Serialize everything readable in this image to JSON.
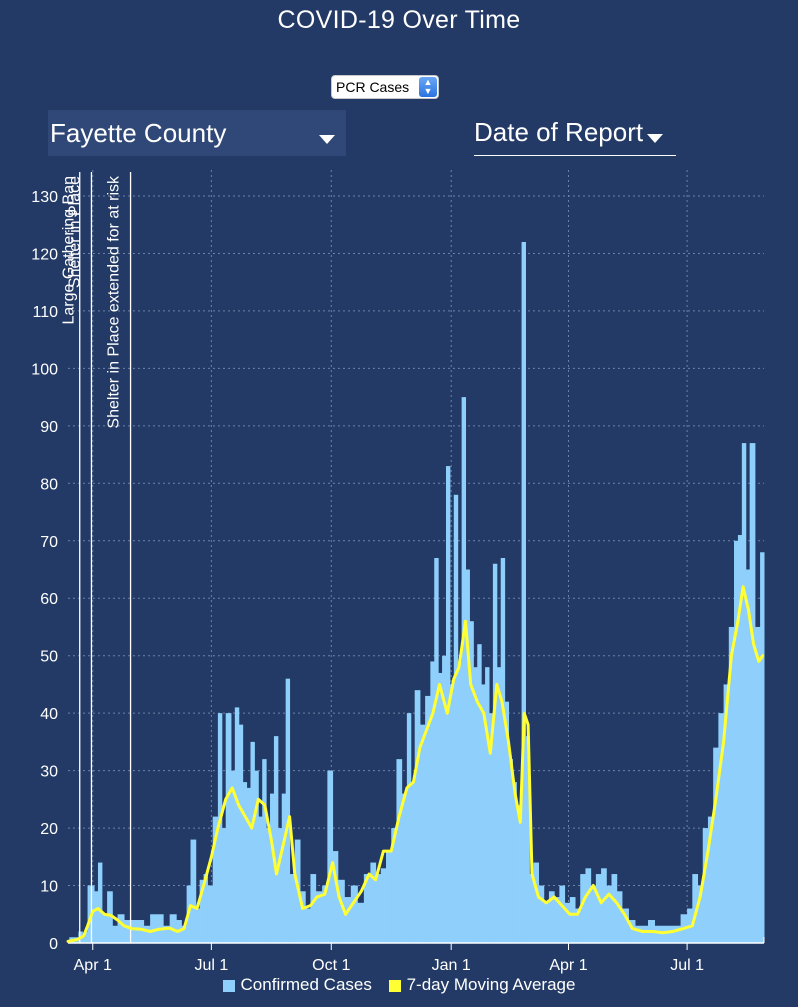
{
  "page": {
    "title": "COVID-19 Over Time"
  },
  "controls": {
    "metric_value": "PCR Cases",
    "county_value": "Fayette County",
    "date_mode_value": "Date of Report"
  },
  "colors": {
    "bars": "#8fcffb",
    "average_line": "#ffff33",
    "background": "#233a66"
  },
  "chart_data": {
    "type": "bar",
    "x_domain": [
      "2020-03-13",
      "2021-08-29"
    ],
    "ylim": [
      0,
      130
    ],
    "yticks": [
      0,
      10,
      20,
      30,
      40,
      50,
      60,
      70,
      80,
      90,
      100,
      110,
      120,
      130
    ],
    "xticks": [
      {
        "date": "2020-04-01",
        "label": "Apr 1"
      },
      {
        "date": "2020-07-01",
        "label": "Jul 1"
      },
      {
        "date": "2020-10-01",
        "label": "Oct 1"
      },
      {
        "date": "2021-01-01",
        "label": "Jan 1"
      },
      {
        "date": "2021-04-01",
        "label": "Apr 1"
      },
      {
        "date": "2021-07-01",
        "label": "Jul 1"
      }
    ],
    "grid": true,
    "legend_position": "bottom",
    "annotations": [
      {
        "date": "2020-03-22",
        "label": "Large Gathering Ban"
      },
      {
        "date": "2020-03-31",
        "label": "Shelter in Place"
      },
      {
        "date": "2020-04-30",
        "label": "Shelter in Place extended for at risk"
      }
    ],
    "series": [
      {
        "name": "Confirmed Cases",
        "type": "bar",
        "points": [
          [
            "2020-03-14",
            1
          ],
          [
            "2020-03-18",
            1
          ],
          [
            "2020-03-21",
            2
          ],
          [
            "2020-03-24",
            1
          ],
          [
            "2020-03-26",
            2
          ],
          [
            "2020-03-28",
            10
          ],
          [
            "2020-03-30",
            10
          ],
          [
            "2020-04-02",
            9
          ],
          [
            "2020-04-05",
            14
          ],
          [
            "2020-04-08",
            5
          ],
          [
            "2020-04-12",
            9
          ],
          [
            "2020-04-16",
            3
          ],
          [
            "2020-04-20",
            5
          ],
          [
            "2020-04-25",
            4
          ],
          [
            "2020-04-30",
            4
          ],
          [
            "2020-05-05",
            4
          ],
          [
            "2020-05-10",
            3
          ],
          [
            "2020-05-15",
            5
          ],
          [
            "2020-05-20",
            5
          ],
          [
            "2020-05-25",
            3
          ],
          [
            "2020-05-30",
            5
          ],
          [
            "2020-06-04",
            4
          ],
          [
            "2020-06-08",
            3
          ],
          [
            "2020-06-12",
            10
          ],
          [
            "2020-06-15",
            18
          ],
          [
            "2020-06-19",
            6
          ],
          [
            "2020-06-22",
            11
          ],
          [
            "2020-06-25",
            12
          ],
          [
            "2020-06-28",
            10
          ],
          [
            "2020-07-02",
            22
          ],
          [
            "2020-07-06",
            40
          ],
          [
            "2020-07-09",
            20
          ],
          [
            "2020-07-12",
            40
          ],
          [
            "2020-07-16",
            30
          ],
          [
            "2020-07-19",
            41
          ],
          [
            "2020-07-22",
            38
          ],
          [
            "2020-07-25",
            28
          ],
          [
            "2020-07-28",
            27
          ],
          [
            "2020-07-31",
            35
          ],
          [
            "2020-08-03",
            30
          ],
          [
            "2020-08-06",
            22
          ],
          [
            "2020-08-09",
            32
          ],
          [
            "2020-08-12",
            20
          ],
          [
            "2020-08-15",
            26
          ],
          [
            "2020-08-18",
            36
          ],
          [
            "2020-08-21",
            20
          ],
          [
            "2020-08-24",
            26
          ],
          [
            "2020-08-27",
            46
          ],
          [
            "2020-08-30",
            12
          ],
          [
            "2020-09-03",
            18
          ],
          [
            "2020-09-07",
            9
          ],
          [
            "2020-09-11",
            6
          ],
          [
            "2020-09-15",
            12
          ],
          [
            "2020-09-19",
            9
          ],
          [
            "2020-09-24",
            10
          ],
          [
            "2020-09-28",
            30
          ],
          [
            "2020-10-02",
            16
          ],
          [
            "2020-10-06",
            11
          ],
          [
            "2020-10-11",
            8
          ],
          [
            "2020-10-16",
            10
          ],
          [
            "2020-10-21",
            7
          ],
          [
            "2020-10-26",
            12
          ],
          [
            "2020-10-31",
            14
          ],
          [
            "2020-11-04",
            12
          ],
          [
            "2020-11-08",
            13
          ],
          [
            "2020-11-12",
            16
          ],
          [
            "2020-11-16",
            20
          ],
          [
            "2020-11-20",
            32
          ],
          [
            "2020-11-24",
            26
          ],
          [
            "2020-11-28",
            40
          ],
          [
            "2020-12-01",
            28
          ],
          [
            "2020-12-04",
            44
          ],
          [
            "2020-12-08",
            38
          ],
          [
            "2020-12-12",
            43
          ],
          [
            "2020-12-16",
            49
          ],
          [
            "2020-12-19",
            67
          ],
          [
            "2020-12-22",
            47
          ],
          [
            "2020-12-25",
            50
          ],
          [
            "2020-12-28",
            83
          ],
          [
            "2020-12-31",
            45
          ],
          [
            "2021-01-03",
            78
          ],
          [
            "2021-01-06",
            49
          ],
          [
            "2021-01-09",
            95
          ],
          [
            "2021-01-12",
            65
          ],
          [
            "2021-01-15",
            56
          ],
          [
            "2021-01-18",
            48
          ],
          [
            "2021-01-21",
            52
          ],
          [
            "2021-01-24",
            45
          ],
          [
            "2021-01-27",
            48
          ],
          [
            "2021-01-30",
            40
          ],
          [
            "2021-02-02",
            66
          ],
          [
            "2021-02-05",
            48
          ],
          [
            "2021-02-08",
            67
          ],
          [
            "2021-02-11",
            42
          ],
          [
            "2021-02-14",
            32
          ],
          [
            "2021-02-17",
            28
          ],
          [
            "2021-02-20",
            24
          ],
          [
            "2021-02-24",
            122
          ],
          [
            "2021-02-27",
            36
          ],
          [
            "2021-03-02",
            12
          ],
          [
            "2021-03-05",
            14
          ],
          [
            "2021-03-09",
            10
          ],
          [
            "2021-03-13",
            7
          ],
          [
            "2021-03-17",
            9
          ],
          [
            "2021-03-21",
            8
          ],
          [
            "2021-03-25",
            10
          ],
          [
            "2021-03-29",
            7
          ],
          [
            "2021-04-02",
            8
          ],
          [
            "2021-04-06",
            6
          ],
          [
            "2021-04-10",
            12
          ],
          [
            "2021-04-14",
            13
          ],
          [
            "2021-04-18",
            10
          ],
          [
            "2021-04-22",
            12
          ],
          [
            "2021-04-26",
            13
          ],
          [
            "2021-04-30",
            10
          ],
          [
            "2021-05-04",
            12
          ],
          [
            "2021-05-08",
            9
          ],
          [
            "2021-05-12",
            6
          ],
          [
            "2021-05-17",
            4
          ],
          [
            "2021-05-22",
            3
          ],
          [
            "2021-05-27",
            3
          ],
          [
            "2021-06-01",
            4
          ],
          [
            "2021-06-06",
            3
          ],
          [
            "2021-06-11",
            3
          ],
          [
            "2021-06-16",
            3
          ],
          [
            "2021-06-21",
            3
          ],
          [
            "2021-06-26",
            5
          ],
          [
            "2021-07-01",
            6
          ],
          [
            "2021-07-05",
            12
          ],
          [
            "2021-07-09",
            10
          ],
          [
            "2021-07-13",
            20
          ],
          [
            "2021-07-17",
            22
          ],
          [
            "2021-07-21",
            34
          ],
          [
            "2021-07-25",
            40
          ],
          [
            "2021-07-29",
            45
          ],
          [
            "2021-08-02",
            55
          ],
          [
            "2021-08-06",
            70
          ],
          [
            "2021-08-09",
            71
          ],
          [
            "2021-08-12",
            87
          ],
          [
            "2021-08-15",
            65
          ],
          [
            "2021-08-18",
            87
          ],
          [
            "2021-08-22",
            55
          ],
          [
            "2021-08-26",
            68
          ]
        ]
      },
      {
        "name": "7-day Moving Average",
        "type": "line",
        "points": [
          [
            "2020-03-13",
            0.3
          ],
          [
            "2020-03-20",
            0.6
          ],
          [
            "2020-03-25",
            1.2
          ],
          [
            "2020-03-28",
            3
          ],
          [
            "2020-04-01",
            5.5
          ],
          [
            "2020-04-05",
            6
          ],
          [
            "2020-04-10",
            5
          ],
          [
            "2020-04-15",
            4.8
          ],
          [
            "2020-04-20",
            4
          ],
          [
            "2020-04-25",
            3
          ],
          [
            "2020-05-01",
            2.5
          ],
          [
            "2020-05-08",
            2.4
          ],
          [
            "2020-05-15",
            2
          ],
          [
            "2020-05-22",
            2.4
          ],
          [
            "2020-05-30",
            2.6
          ],
          [
            "2020-06-05",
            2
          ],
          [
            "2020-06-10",
            2.5
          ],
          [
            "2020-06-15",
            6.5
          ],
          [
            "2020-06-20",
            6
          ],
          [
            "2020-06-25",
            10
          ],
          [
            "2020-07-01",
            15
          ],
          [
            "2020-07-06",
            20
          ],
          [
            "2020-07-12",
            25
          ],
          [
            "2020-07-17",
            27
          ],
          [
            "2020-07-22",
            24
          ],
          [
            "2020-07-27",
            22
          ],
          [
            "2020-08-01",
            20
          ],
          [
            "2020-08-06",
            25
          ],
          [
            "2020-08-11",
            24
          ],
          [
            "2020-08-16",
            18
          ],
          [
            "2020-08-20",
            12
          ],
          [
            "2020-08-25",
            17
          ],
          [
            "2020-08-30",
            22
          ],
          [
            "2020-09-03",
            12
          ],
          [
            "2020-09-09",
            6
          ],
          [
            "2020-09-15",
            6.5
          ],
          [
            "2020-09-20",
            8
          ],
          [
            "2020-09-26",
            8.5
          ],
          [
            "2020-10-02",
            14
          ],
          [
            "2020-10-07",
            8
          ],
          [
            "2020-10-12",
            5
          ],
          [
            "2020-10-18",
            7
          ],
          [
            "2020-10-24",
            9
          ],
          [
            "2020-10-30",
            12
          ],
          [
            "2020-11-04",
            11
          ],
          [
            "2020-11-10",
            16
          ],
          [
            "2020-11-16",
            16
          ],
          [
            "2020-11-22",
            22
          ],
          [
            "2020-11-28",
            27
          ],
          [
            "2020-12-03",
            28
          ],
          [
            "2020-12-08",
            34
          ],
          [
            "2020-12-13",
            37
          ],
          [
            "2020-12-18",
            40
          ],
          [
            "2020-12-23",
            45
          ],
          [
            "2020-12-29",
            40
          ],
          [
            "2021-01-03",
            46
          ],
          [
            "2021-01-07",
            48
          ],
          [
            "2021-01-12",
            56
          ],
          [
            "2021-01-16",
            45
          ],
          [
            "2021-01-21",
            42
          ],
          [
            "2021-01-26",
            40
          ],
          [
            "2021-01-31",
            33
          ],
          [
            "2021-02-05",
            45
          ],
          [
            "2021-02-09",
            42
          ],
          [
            "2021-02-14",
            35
          ],
          [
            "2021-02-19",
            26
          ],
          [
            "2021-02-23",
            21
          ],
          [
            "2021-02-26",
            40
          ],
          [
            "2021-03-01",
            38
          ],
          [
            "2021-03-04",
            12
          ],
          [
            "2021-03-09",
            8
          ],
          [
            "2021-03-15",
            7
          ],
          [
            "2021-03-21",
            8
          ],
          [
            "2021-03-27",
            6.5
          ],
          [
            "2021-04-02",
            5
          ],
          [
            "2021-04-08",
            5
          ],
          [
            "2021-04-14",
            8
          ],
          [
            "2021-04-20",
            10
          ],
          [
            "2021-04-26",
            7
          ],
          [
            "2021-05-02",
            8.5
          ],
          [
            "2021-05-08",
            7
          ],
          [
            "2021-05-14",
            5
          ],
          [
            "2021-05-20",
            2.5
          ],
          [
            "2021-05-28",
            2
          ],
          [
            "2021-06-05",
            2
          ],
          [
            "2021-06-12",
            1.8
          ],
          [
            "2021-06-20",
            2
          ],
          [
            "2021-06-28",
            2.5
          ],
          [
            "2021-07-05",
            3
          ],
          [
            "2021-07-11",
            8
          ],
          [
            "2021-07-17",
            16
          ],
          [
            "2021-07-23",
            25
          ],
          [
            "2021-07-29",
            35
          ],
          [
            "2021-08-04",
            50
          ],
          [
            "2021-08-09",
            56
          ],
          [
            "2021-08-13",
            62
          ],
          [
            "2021-08-17",
            58
          ],
          [
            "2021-08-21",
            52
          ],
          [
            "2021-08-25",
            49
          ],
          [
            "2021-08-28",
            50
          ]
        ]
      }
    ]
  }
}
